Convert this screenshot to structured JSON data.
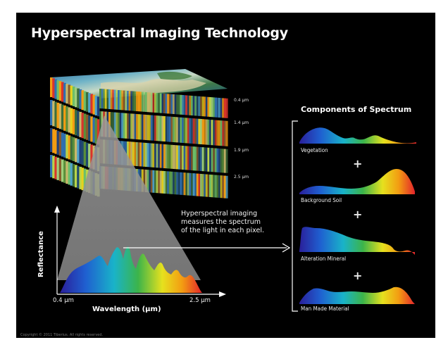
{
  "title": "Hyperspectral Imaging Technology",
  "cube": {
    "band_labels": [
      "0.4 µm",
      "1.4 µm",
      "1.9 µm",
      "2.5 µm"
    ]
  },
  "caption_lines": [
    "Hyperspectral imaging",
    "measures the spectrum",
    "of the light in each pixel."
  ],
  "reflectance_plot": {
    "y_axis_label": "Reflectance",
    "x_axis_label": "Wavelength (µm)",
    "x_tick_start": "0.4 µm",
    "x_tick_end": "2.5 µm"
  },
  "components": {
    "title": "Components of Spectrum",
    "labels": [
      "Vegetation",
      "Background Soil",
      "Alteration Mineral",
      "Man Made Material"
    ],
    "plus": "+"
  },
  "copyright": "Copyright © 2011 Tiberius. All rights reserved.",
  "colors": {
    "background": "#000000",
    "spectrum": [
      "#2a2fb8",
      "#1f6fd6",
      "#19b3c9",
      "#39b54a",
      "#e6e11e",
      "#f39c12",
      "#e3242b"
    ]
  }
}
